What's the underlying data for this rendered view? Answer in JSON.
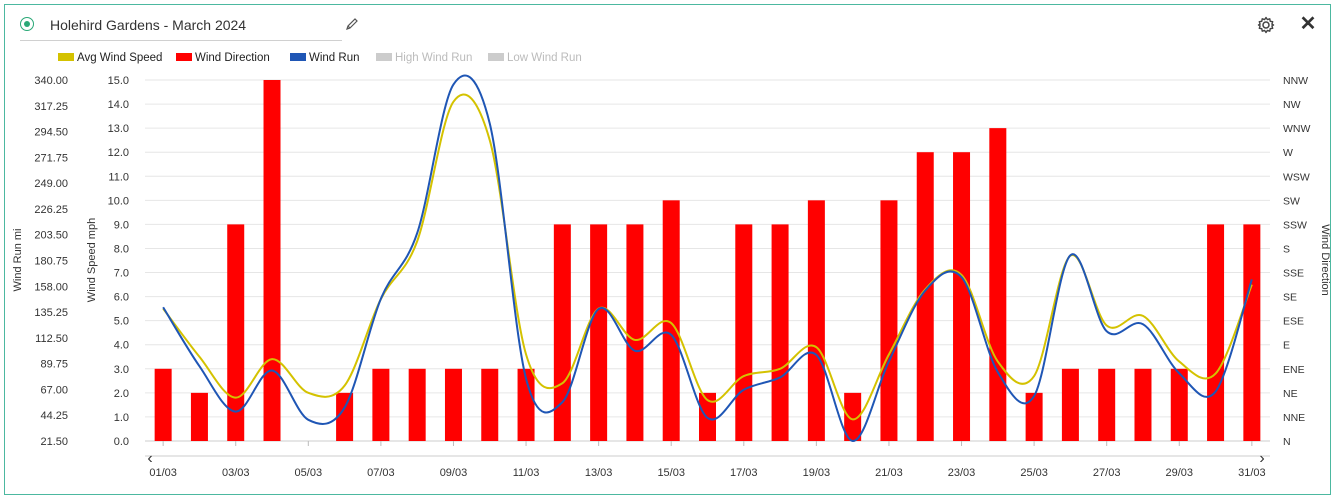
{
  "header": {
    "title": "Holehird Gardens - March 2024"
  },
  "colors": {
    "frame_border": "#4cb8a0",
    "status": "#2aa877",
    "avg_wind_speed": "#d4c200",
    "wind_direction": "#ff0000",
    "wind_run": "#1f56b5",
    "hidden_series": "#cccccc"
  },
  "chart_data": {
    "type": "bar+line",
    "legend": [
      {
        "name": "Avg Wind Speed",
        "color": "#d4c200",
        "visible": true
      },
      {
        "name": "Wind Direction",
        "color": "#ff0000",
        "visible": true
      },
      {
        "name": "Wind Run",
        "color": "#1f56b5",
        "visible": true
      },
      {
        "name": "High Wind Run",
        "color": "#cccccc",
        "visible": false
      },
      {
        "name": "Low Wind Run",
        "color": "#cccccc",
        "visible": false
      }
    ],
    "legend_position": "top-left",
    "x_ticks": [
      "01/03",
      "03/03",
      "05/03",
      "07/03",
      "09/03",
      "11/03",
      "13/03",
      "15/03",
      "17/03",
      "19/03",
      "21/03",
      "23/03",
      "25/03",
      "27/03",
      "29/03",
      "31/03"
    ],
    "days": [
      1,
      2,
      3,
      4,
      5,
      6,
      7,
      8,
      9,
      10,
      11,
      12,
      13,
      14,
      15,
      16,
      17,
      18,
      19,
      20,
      21,
      22,
      23,
      24,
      25,
      26,
      27,
      28,
      29,
      30,
      31
    ],
    "left_axis": {
      "label": "Wind Run mi",
      "ticks": [
        "340.00",
        "317.25",
        "294.50",
        "271.75",
        "249.00",
        "226.25",
        "203.50",
        "180.75",
        "158.00",
        "135.25",
        "112.50",
        "89.75",
        "67.00",
        "44.25",
        "21.50"
      ],
      "range": [
        21.5,
        340
      ]
    },
    "speed_axis": {
      "label": "Wind Speed mph",
      "ticks": [
        "15.0",
        "14.0",
        "13.0",
        "12.0",
        "11.0",
        "10.0",
        "9.0",
        "8.0",
        "7.0",
        "6.0",
        "5.0",
        "4.0",
        "3.0",
        "2.0",
        "1.0",
        "0.0"
      ],
      "range": [
        0,
        15
      ]
    },
    "right_axis": {
      "label": "Wind Direction",
      "ticks": [
        "NNW",
        "NW",
        "WNW",
        "W",
        "WSW",
        "SW",
        "SSW",
        "S",
        "SSE",
        "SE",
        "ESE",
        "E",
        "ENE",
        "NE",
        "NNE",
        "N"
      ]
    },
    "series": [
      {
        "name": "Avg Wind Speed",
        "axis": "speed",
        "values": [
          5.5,
          3.5,
          1.8,
          3.4,
          2.0,
          2.3,
          5.9,
          8.3,
          14.1,
          12.5,
          3.6,
          2.4,
          5.5,
          4.2,
          4.9,
          1.7,
          2.7,
          3.0,
          3.9,
          0.9,
          3.6,
          6.3,
          6.9,
          3.3,
          2.7,
          7.7,
          4.8,
          5.2,
          3.3,
          2.8,
          6.5
        ]
      },
      {
        "name": "Wind Direction",
        "axis": "direction_index",
        "values": [
          3,
          2,
          9,
          15,
          0,
          2,
          3,
          3,
          3,
          3,
          3,
          9,
          9,
          9,
          10,
          2,
          9,
          9,
          10,
          2,
          10,
          12,
          12,
          13,
          2,
          3,
          3,
          3,
          3,
          9,
          9
        ]
      },
      {
        "name": "Wind Run",
        "axis": "run_mi",
        "values": [
          139.5,
          87.5,
          47.4,
          83.7,
          40.2,
          51.0,
          147.0,
          204.9,
          336.1,
          301.6,
          76.5,
          55.7,
          138.0,
          101.1,
          115.1,
          41.9,
          66.7,
          77.6,
          97.4,
          21.5,
          91.9,
          154.2,
          166.1,
          82.2,
          61.2,
          185.4,
          118.3,
          124.5,
          81.2,
          65.1,
          164.0
        ]
      }
    ]
  }
}
